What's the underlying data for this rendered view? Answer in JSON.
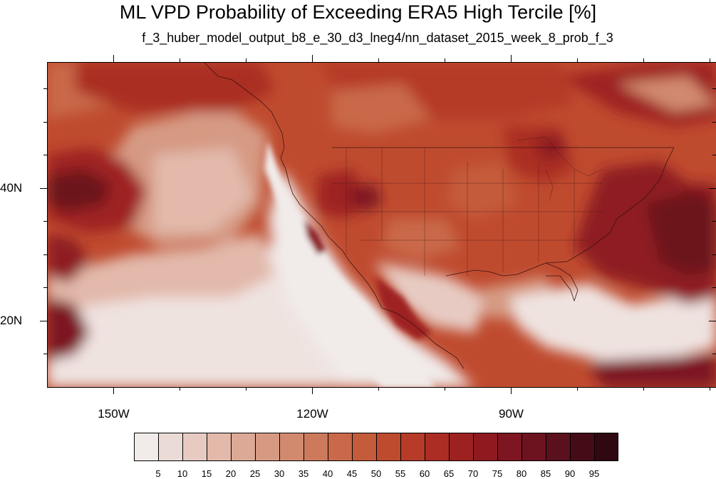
{
  "header": {
    "title": "ML VPD Probability of Exceeding ERA5 High Tercile [%]",
    "subtitle": "f_3_huber_model_output_b8_e_30_d3_lneg4/nn_dataset_2015_week_8_prob_f_3"
  },
  "map": {
    "region": "North Pacific and contiguous United States",
    "lat_range": [
      10,
      59
    ],
    "lon_range": [
      -160,
      -59
    ],
    "x_ticks": [
      {
        "lon": -150,
        "label": "150W"
      },
      {
        "lon": -120,
        "label": "120W"
      },
      {
        "lon": -90,
        "label": "90W"
      }
    ],
    "y_ticks": [
      {
        "lat": 40,
        "label": "40N"
      },
      {
        "lat": 20,
        "label": "20N"
      }
    ],
    "minor_x_ticks": [
      -140,
      -130,
      -110,
      -100,
      -80,
      -70,
      -60
    ],
    "minor_y_ticks": [
      15,
      25,
      30,
      35,
      45,
      50,
      55
    ]
  },
  "colorbar": {
    "labels": [
      "5",
      "10",
      "15",
      "20",
      "25",
      "30",
      "35",
      "40",
      "45",
      "50",
      "55",
      "60",
      "65",
      "70",
      "75",
      "80",
      "85",
      "90",
      "95"
    ],
    "colors": [
      "#f1ebea",
      "#ebdbd6",
      "#e7cbc2",
      "#e2b9ab",
      "#dba996",
      "#d69a83",
      "#d28a6f",
      "#cd7a5c",
      "#c9694a",
      "#c45b3b",
      "#bf4b2f",
      "#b63b28",
      "#ab2d24",
      "#9e2121",
      "#8e1a20",
      "#7d1620",
      "#6c131f",
      "#5a101d",
      "#450c18",
      "#2f0812"
    ]
  }
}
